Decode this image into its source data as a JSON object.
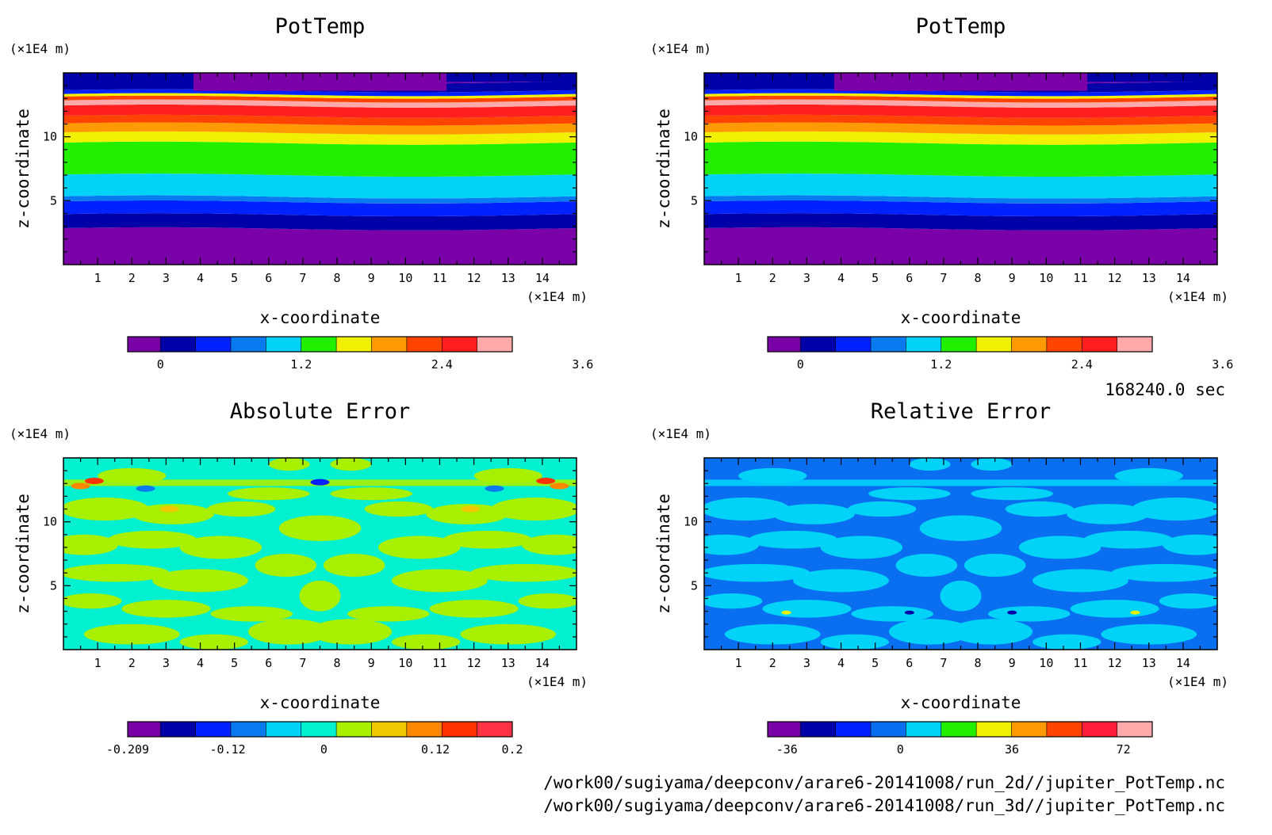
{
  "chart_data": [
    {
      "type": "heatmap",
      "title": "PotTemp",
      "xlabel": "x-coordinate",
      "ylabel": "z-coordinate",
      "x_unit": "(×1E4 m)",
      "y_unit": "(×1E4 m)",
      "xlim": [
        0,
        15
      ],
      "ylim": [
        0,
        15
      ],
      "x_ticks": [
        "1",
        "2",
        "3",
        "4",
        "5",
        "6",
        "7",
        "8",
        "9",
        "10",
        "11",
        "12",
        "13",
        "14"
      ],
      "y_ticks": [
        "5",
        "10"
      ],
      "colorbar": {
        "levels": [
          -0.6,
          -0.3,
          0,
          0.3,
          0.6,
          0.9,
          1.2,
          1.5,
          1.8,
          2.1,
          2.4,
          2.7,
          3.0,
          3.3,
          3.6,
          3.9
        ],
        "labels": [
          "0",
          "1.2",
          "2.4",
          "3.6"
        ],
        "label_values": [
          0,
          1.2,
          2.4,
          3.6
        ],
        "colors": [
          "#7a00a8",
          "#0000a8",
          "#0022ff",
          "#0a7af0",
          "#00d2f8",
          "#22ee00",
          "#f0f000",
          "#ff9a00",
          "#ff4400",
          "#ff1f1f",
          "#ffaaaa"
        ]
      },
      "bands_z": [
        {
          "z": 0.0,
          "level": 0
        },
        {
          "z": 2.8,
          "level": 1
        },
        {
          "z": 3.9,
          "level": 2
        },
        {
          "z": 4.9,
          "level": 3
        },
        {
          "z": 5.3,
          "level": 4
        },
        {
          "z": 7.0,
          "level": 5
        },
        {
          "z": 9.5,
          "level": 6
        },
        {
          "z": 10.3,
          "level": 7
        },
        {
          "z": 11.0,
          "level": 8
        },
        {
          "z": 11.6,
          "level": 9
        },
        {
          "z": 12.4,
          "level": 10
        },
        {
          "z": 12.8,
          "level": 8
        },
        {
          "z": 13.1,
          "level": 6
        },
        {
          "z": 13.3,
          "level": 2
        },
        {
          "z": 13.6,
          "level": 1
        },
        {
          "z": 14.3,
          "level": 0
        }
      ]
    },
    {
      "type": "heatmap",
      "title": "PotTemp",
      "xlabel": "x-coordinate",
      "ylabel": "z-coordinate",
      "x_unit": "(×1E4 m)",
      "y_unit": "(×1E4 m)",
      "xlim": [
        0,
        15
      ],
      "ylim": [
        0,
        15
      ],
      "x_ticks": [
        "1",
        "2",
        "3",
        "4",
        "5",
        "6",
        "7",
        "8",
        "9",
        "10",
        "11",
        "12",
        "13",
        "14"
      ],
      "y_ticks": [
        "5",
        "10"
      ],
      "colorbar": {
        "levels": [
          -0.6,
          -0.3,
          0,
          0.3,
          0.6,
          0.9,
          1.2,
          1.5,
          1.8,
          2.1,
          2.4,
          2.7,
          3.0,
          3.3,
          3.6,
          3.9
        ],
        "labels": [
          "0",
          "1.2",
          "2.4",
          "3.6"
        ],
        "label_values": [
          0,
          1.2,
          2.4,
          3.6
        ],
        "colors": [
          "#7a00a8",
          "#0000a8",
          "#0022ff",
          "#0a7af0",
          "#00d2f8",
          "#22ee00",
          "#f0f000",
          "#ff9a00",
          "#ff4400",
          "#ff1f1f",
          "#ffaaaa"
        ]
      },
      "bands_z": [
        {
          "z": 0.0,
          "level": 0
        },
        {
          "z": 2.8,
          "level": 1
        },
        {
          "z": 3.9,
          "level": 2
        },
        {
          "z": 4.9,
          "level": 3
        },
        {
          "z": 5.3,
          "level": 4
        },
        {
          "z": 7.0,
          "level": 5
        },
        {
          "z": 9.5,
          "level": 6
        },
        {
          "z": 10.3,
          "level": 7
        },
        {
          "z": 11.0,
          "level": 8
        },
        {
          "z": 11.6,
          "level": 9
        },
        {
          "z": 12.4,
          "level": 10
        },
        {
          "z": 12.8,
          "level": 8
        },
        {
          "z": 13.1,
          "level": 6
        },
        {
          "z": 13.3,
          "level": 2
        },
        {
          "z": 13.6,
          "level": 1
        },
        {
          "z": 14.3,
          "level": 0
        }
      ]
    },
    {
      "type": "heatmap",
      "title": "Absolute Error",
      "xlabel": "x-coordinate",
      "ylabel": "z-coordinate",
      "x_unit": "(×1E4 m)",
      "y_unit": "(×1E4 m)",
      "xlim": [
        0,
        15
      ],
      "ylim": [
        0,
        15
      ],
      "x_ticks": [
        "1",
        "2",
        "3",
        "4",
        "5",
        "6",
        "7",
        "8",
        "9",
        "10",
        "11",
        "12",
        "13",
        "14"
      ],
      "y_ticks": [
        "5",
        "10"
      ],
      "colorbar": {
        "labels": [
          "-0.209",
          "-0.12",
          "0",
          "0.12",
          "0.2"
        ],
        "colors": [
          "#7a00a8",
          "#0000a8",
          "#0022ff",
          "#0a7af0",
          "#00d2f8",
          "#00f0d0",
          "#a8f000",
          "#f0c800",
          "#ff8800",
          "#ff3300",
          "#ff3344"
        ],
        "label_positions": [
          0.0,
          0.26,
          0.51,
          0.8,
          1.0
        ]
      },
      "background_level": 5,
      "pattern_level": 6,
      "error_field": true
    },
    {
      "type": "heatmap",
      "title": "Relative Error",
      "xlabel": "x-coordinate",
      "ylabel": "z-coordinate",
      "x_unit": "(×1E4 m)",
      "y_unit": "(×1E4 m)",
      "xlim": [
        0,
        15
      ],
      "ylim": [
        0,
        15
      ],
      "x_ticks": [
        "1",
        "2",
        "3",
        "4",
        "5",
        "6",
        "7",
        "8",
        "9",
        "10",
        "11",
        "12",
        "13",
        "14"
      ],
      "y_ticks": [
        "5",
        "10"
      ],
      "colorbar": {
        "labels": [
          "-36",
          "0",
          "36",
          "72"
        ],
        "colors": [
          "#7a00a8",
          "#0000a8",
          "#0022ff",
          "#0a6ef0",
          "#00d2f8",
          "#22ee00",
          "#f0f000",
          "#ff9a00",
          "#ff4400",
          "#ff1f3a",
          "#ffaaaa"
        ],
        "label_positions": [
          0.05,
          0.345,
          0.635,
          0.925
        ]
      },
      "background_level": 3,
      "pattern_level": 4,
      "error_field": true
    }
  ],
  "info": {
    "time": "168240.0 sec",
    "file1": "/work00/sugiyama/deepconv/arare6-20141008/run_2d//jupiter_PotTemp.nc",
    "file2": "/work00/sugiyama/deepconv/arare6-20141008/run_3d//jupiter_PotTemp.nc"
  }
}
